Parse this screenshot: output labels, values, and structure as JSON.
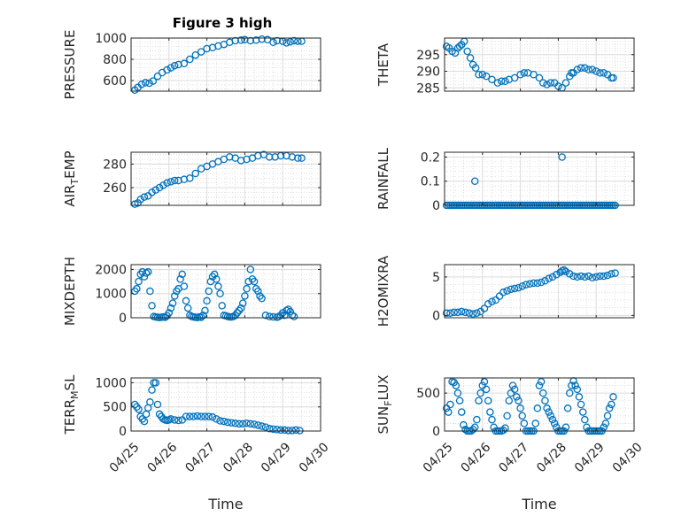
{
  "figure": {
    "title": "Figure 3 high"
  },
  "chart_data": [
    {
      "id": "pressure",
      "type": "scatter",
      "title": "Figure 3 high",
      "ylabel_main": "PRESSURE",
      "ylabel_sub": "",
      "ylabel_tail": "",
      "ylim": [
        500,
        1000
      ],
      "yticks": [
        600,
        800,
        1000
      ],
      "ytick_labels": [
        "600",
        "800",
        "1000"
      ],
      "xlim": [
        0,
        5
      ],
      "grid": true,
      "color": "#0072BD",
      "x": [
        0.1,
        0.18,
        0.28,
        0.38,
        0.48,
        0.58,
        0.7,
        0.82,
        0.95,
        1.05,
        1.15,
        1.25,
        1.4,
        1.55,
        1.7,
        1.85,
        2.0,
        2.15,
        2.3,
        2.45,
        2.6,
        2.75,
        2.9,
        3.0,
        3.15,
        3.3,
        3.45,
        3.6,
        3.75,
        3.85,
        4.0,
        4.1,
        4.2,
        4.3,
        4.4,
        4.5
      ],
      "y": [
        510,
        535,
        565,
        580,
        575,
        595,
        640,
        675,
        700,
        720,
        740,
        750,
        760,
        800,
        840,
        870,
        900,
        910,
        925,
        940,
        960,
        975,
        980,
        985,
        975,
        980,
        990,
        985,
        960,
        975,
        970,
        955,
        965,
        975,
        970,
        970
      ]
    },
    {
      "id": "theta",
      "type": "scatter",
      "ylabel_main": "THETA",
      "ylabel_sub": "",
      "ylabel_tail": "",
      "ylim": [
        284,
        300
      ],
      "yticks": [
        285,
        290,
        295
      ],
      "ytick_labels": [
        "285",
        "290",
        "295"
      ],
      "xlim": [
        0,
        5
      ],
      "grid": true,
      "color": "#0072BD",
      "x": [
        0.05,
        0.12,
        0.2,
        0.28,
        0.35,
        0.4,
        0.45,
        0.52,
        0.6,
        0.68,
        0.75,
        0.82,
        0.9,
        1.0,
        1.1,
        1.25,
        1.4,
        1.5,
        1.6,
        1.7,
        1.85,
        2.0,
        2.1,
        2.2,
        2.35,
        2.5,
        2.6,
        2.7,
        2.8,
        2.9,
        3.0,
        3.1,
        3.2,
        3.3,
        3.35,
        3.4,
        3.5,
        3.6,
        3.7,
        3.8,
        3.9,
        4.0,
        4.1,
        4.2,
        4.3,
        4.4,
        4.45
      ],
      "y": [
        297.5,
        297.0,
        296.0,
        295.5,
        297.0,
        297.5,
        298.0,
        299.0,
        296.0,
        294.0,
        292.0,
        291.0,
        289.0,
        289.0,
        288.5,
        287.5,
        286.5,
        287.0,
        287.0,
        287.5,
        288.0,
        289.0,
        289.5,
        289.5,
        289.0,
        288.0,
        286.5,
        286.0,
        286.5,
        286.5,
        285.5,
        285.0,
        286.5,
        288.5,
        289.5,
        289.5,
        290.5,
        291.0,
        291.0,
        290.5,
        290.5,
        290.0,
        289.5,
        289.5,
        289.0,
        288.0,
        288.0
      ]
    },
    {
      "id": "air_temp",
      "type": "scatter",
      "ylabel_main": "AIR",
      "ylabel_sub": "T",
      "ylabel_tail": "EMP",
      "ylim": [
        245,
        290
      ],
      "yticks": [
        260,
        280
      ],
      "ytick_labels": [
        "260",
        "280"
      ],
      "xlim": [
        0,
        5
      ],
      "grid": true,
      "color": "#0072BD",
      "x": [
        0.1,
        0.18,
        0.25,
        0.35,
        0.45,
        0.55,
        0.65,
        0.75,
        0.85,
        0.95,
        1.05,
        1.15,
        1.25,
        1.4,
        1.55,
        1.7,
        1.85,
        2.0,
        2.15,
        2.3,
        2.45,
        2.6,
        2.75,
        2.9,
        3.05,
        3.2,
        3.35,
        3.5,
        3.65,
        3.8,
        3.95,
        4.1,
        4.25,
        4.4,
        4.5
      ],
      "y": [
        246,
        247,
        250,
        252,
        253,
        256,
        258,
        260,
        262,
        264,
        265,
        266,
        266,
        267,
        268,
        272,
        276,
        278,
        280,
        282,
        284,
        286,
        285,
        283,
        284,
        285,
        287,
        288,
        286,
        286,
        287,
        287,
        286,
        285,
        285
      ]
    },
    {
      "id": "rainfall",
      "type": "scatter",
      "ylabel_main": "RAINFALL",
      "ylabel_sub": "",
      "ylabel_tail": "",
      "ylim": [
        0,
        0.22
      ],
      "yticks": [
        0,
        0.1,
        0.2
      ],
      "ytick_labels": [
        "0",
        "0.1",
        "0.2"
      ],
      "xlim": [
        0,
        5
      ],
      "grid": true,
      "color": "#0072BD",
      "zero_from": 0.05,
      "zero_to": 4.5,
      "zero_step": 0.05,
      "x": [
        0.8,
        3.1
      ],
      "y": [
        0.1,
        0.2
      ]
    },
    {
      "id": "mixdepth",
      "type": "scatter",
      "ylabel_main": "MIXDEPTH",
      "ylabel_sub": "",
      "ylabel_tail": "",
      "ylim": [
        0,
        2200
      ],
      "yticks": [
        0,
        1000,
        2000
      ],
      "ytick_labels": [
        "0",
        "1000",
        "2000"
      ],
      "xlim": [
        0,
        5
      ],
      "grid": true,
      "color": "#0072BD",
      "x": [
        0.1,
        0.15,
        0.2,
        0.25,
        0.3,
        0.35,
        0.4,
        0.45,
        0.5,
        0.55,
        0.6,
        0.65,
        0.7,
        0.75,
        0.8,
        0.85,
        0.9,
        0.95,
        1.0,
        1.05,
        1.1,
        1.15,
        1.2,
        1.25,
        1.3,
        1.35,
        1.4,
        1.45,
        1.5,
        1.55,
        1.6,
        1.65,
        1.7,
        1.75,
        1.8,
        1.85,
        1.9,
        1.95,
        2.0,
        2.05,
        2.1,
        2.15,
        2.2,
        2.25,
        2.3,
        2.35,
        2.4,
        2.45,
        2.5,
        2.55,
        2.6,
        2.65,
        2.7,
        2.75,
        2.8,
        2.85,
        2.9,
        2.95,
        3.0,
        3.05,
        3.1,
        3.15,
        3.2,
        3.25,
        3.3,
        3.35,
        3.4,
        3.45,
        3.55,
        3.65,
        3.75,
        3.85,
        3.9,
        3.95,
        4.0,
        4.05,
        4.1,
        4.15,
        4.2,
        4.25,
        4.3
      ],
      "y": [
        1100,
        1200,
        1500,
        1800,
        1900,
        1700,
        1850,
        1900,
        1100,
        500,
        50,
        30,
        20,
        10,
        20,
        30,
        20,
        80,
        200,
        400,
        600,
        900,
        1100,
        1200,
        1600,
        1800,
        1300,
        700,
        400,
        100,
        50,
        30,
        20,
        10,
        30,
        20,
        100,
        300,
        700,
        1100,
        1500,
        1700,
        1800,
        1600,
        1300,
        1000,
        500,
        100,
        80,
        50,
        30,
        30,
        50,
        100,
        200,
        300,
        400,
        600,
        900,
        1200,
        1500,
        2000,
        1600,
        1500,
        1200,
        1100,
        900,
        800,
        100,
        50,
        30,
        20,
        50,
        100,
        200,
        100,
        300,
        350,
        250,
        100,
        50
      ]
    },
    {
      "id": "h2omixra",
      "type": "scatter",
      "ylabel_main": "H2OMIXRA",
      "ylabel_sub": "",
      "ylabel_tail": "",
      "ylim": [
        -0.3,
        6.6
      ],
      "yticks": [
        0,
        5
      ],
      "ytick_labels": [
        "0",
        "5"
      ],
      "xlim": [
        0,
        5
      ],
      "grid": true,
      "color": "#0072BD",
      "x": [
        0.05,
        0.15,
        0.25,
        0.35,
        0.45,
        0.55,
        0.65,
        0.75,
        0.85,
        0.95,
        1.05,
        1.15,
        1.25,
        1.35,
        1.45,
        1.55,
        1.65,
        1.75,
        1.85,
        1.95,
        2.05,
        2.15,
        2.25,
        2.35,
        2.45,
        2.55,
        2.65,
        2.75,
        2.85,
        2.95,
        3.05,
        3.1,
        3.15,
        3.2,
        3.3,
        3.4,
        3.5,
        3.6,
        3.7,
        3.8,
        3.9,
        4.0,
        4.1,
        4.2,
        4.3,
        4.4,
        4.5
      ],
      "y": [
        0.3,
        0.3,
        0.4,
        0.4,
        0.5,
        0.4,
        0.3,
        0.2,
        0.3,
        0.5,
        0.9,
        1.5,
        1.8,
        2.0,
        2.5,
        3.0,
        3.2,
        3.4,
        3.5,
        3.6,
        3.8,
        4.0,
        4.1,
        4.2,
        4.2,
        4.3,
        4.5,
        4.8,
        5.0,
        5.3,
        5.6,
        5.8,
        5.9,
        5.7,
        5.4,
        5.1,
        5.0,
        5.1,
        5.0,
        5.1,
        4.9,
        5.0,
        5.1,
        5.1,
        5.2,
        5.4,
        5.5
      ]
    },
    {
      "id": "terr_msl",
      "type": "scatter",
      "ylabel_main": "TERR",
      "ylabel_sub": "M",
      "ylabel_tail": "SL",
      "ylim": [
        0,
        1100
      ],
      "yticks": [
        0,
        500,
        1000
      ],
      "ytick_labels": [
        "0",
        "500",
        "1000"
      ],
      "xlim": [
        0,
        5
      ],
      "grid": true,
      "color": "#0072BD",
      "xticks": [
        0,
        1,
        2,
        3,
        4,
        5
      ],
      "xtick_labels": [
        "04/25",
        "04/26",
        "04/27",
        "04/28",
        "04/29",
        "04/30"
      ],
      "xlabel": "Time",
      "x": [
        0.1,
        0.15,
        0.2,
        0.25,
        0.3,
        0.35,
        0.4,
        0.45,
        0.5,
        0.55,
        0.6,
        0.65,
        0.7,
        0.75,
        0.8,
        0.85,
        0.9,
        0.95,
        1.0,
        1.05,
        1.15,
        1.25,
        1.35,
        1.45,
        1.55,
        1.65,
        1.75,
        1.85,
        1.95,
        2.05,
        2.15,
        2.25,
        2.35,
        2.45,
        2.55,
        2.65,
        2.75,
        2.85,
        2.95,
        3.05,
        3.15,
        3.25,
        3.35,
        3.45,
        3.55,
        3.65,
        3.75,
        3.85,
        3.95,
        4.05,
        4.15,
        4.25,
        4.35,
        4.45
      ],
      "y": [
        550,
        500,
        450,
        300,
        250,
        200,
        350,
        480,
        600,
        850,
        1000,
        1000,
        550,
        350,
        300,
        250,
        230,
        220,
        230,
        250,
        230,
        220,
        230,
        300,
        300,
        300,
        310,
        300,
        300,
        300,
        290,
        250,
        210,
        200,
        180,
        170,
        160,
        150,
        150,
        160,
        150,
        140,
        120,
        100,
        80,
        50,
        40,
        30,
        20,
        20,
        10,
        10,
        20,
        10
      ]
    },
    {
      "id": "sun_flux",
      "type": "scatter",
      "ylabel_main": "SUN",
      "ylabel_sub": "F",
      "ylabel_tail": "LUX",
      "ylim": [
        0,
        700
      ],
      "yticks": [
        0,
        500
      ],
      "ytick_labels": [
        "0",
        "500"
      ],
      "xlim": [
        0,
        5
      ],
      "grid": true,
      "color": "#0072BD",
      "xticks": [
        0,
        1,
        2,
        3,
        4,
        5
      ],
      "xtick_labels": [
        "04/25",
        "04/26",
        "04/27",
        "04/28",
        "04/29",
        "04/30"
      ],
      "xlabel": "Time",
      "x": [
        0.05,
        0.1,
        0.15,
        0.2,
        0.25,
        0.3,
        0.35,
        0.4,
        0.45,
        0.5,
        0.55,
        0.6,
        0.65,
        0.7,
        0.75,
        0.8,
        0.85,
        0.9,
        0.95,
        1.0,
        1.05,
        1.1,
        1.15,
        1.2,
        1.25,
        1.3,
        1.35,
        1.4,
        1.45,
        1.5,
        1.55,
        1.6,
        1.65,
        1.7,
        1.75,
        1.8,
        1.85,
        1.9,
        1.95,
        2.0,
        2.05,
        2.1,
        2.15,
        2.2,
        2.25,
        2.3,
        2.35,
        2.4,
        2.45,
        2.5,
        2.55,
        2.6,
        2.65,
        2.7,
        2.75,
        2.8,
        2.85,
        2.9,
        2.95,
        3.0,
        3.05,
        3.1,
        3.15,
        3.2,
        3.25,
        3.3,
        3.35,
        3.4,
        3.45,
        3.5,
        3.55,
        3.6,
        3.65,
        3.7,
        3.75,
        3.8,
        3.85,
        3.9,
        3.95,
        4.0,
        4.05,
        4.1,
        4.15,
        4.2,
        4.25,
        4.3,
        4.35,
        4.4,
        4.45
      ],
      "y": [
        300,
        250,
        350,
        650,
        640,
        600,
        500,
        400,
        250,
        80,
        20,
        0,
        0,
        0,
        20,
        50,
        150,
        400,
        500,
        600,
        650,
        550,
        400,
        250,
        150,
        50,
        0,
        0,
        0,
        0,
        10,
        40,
        200,
        400,
        500,
        600,
        550,
        450,
        400,
        300,
        200,
        100,
        0,
        0,
        0,
        0,
        0,
        100,
        300,
        600,
        650,
        500,
        400,
        300,
        250,
        200,
        150,
        100,
        50,
        0,
        0,
        0,
        0,
        50,
        300,
        500,
        600,
        660,
        600,
        550,
        450,
        350,
        250,
        150,
        50,
        0,
        0,
        0,
        0,
        0,
        0,
        0,
        0,
        50,
        100,
        200,
        300,
        350,
        450
      ]
    }
  ]
}
